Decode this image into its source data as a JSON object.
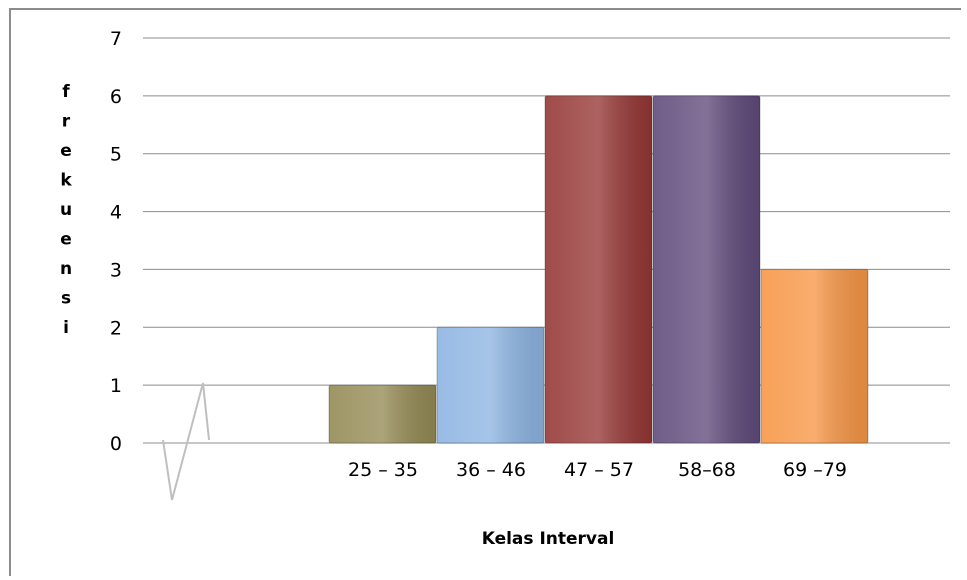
{
  "chart_data": {
    "type": "bar",
    "categories": [
      "25 – 35",
      "36 – 46",
      "47 – 57",
      "58–68",
      "69 –79"
    ],
    "values": [
      1,
      2,
      6,
      6,
      3
    ],
    "colors": [
      "#948a54",
      "#8db4e2",
      "#953735",
      "#604a7b",
      "#f79646"
    ],
    "xlabel": "Kelas Interval",
    "ylabel": "frekuensi",
    "ylabel_letters": [
      "f",
      "r",
      "e",
      "k",
      "u",
      "e",
      "n",
      "s",
      "i"
    ],
    "ylim": [
      0,
      7
    ],
    "yticks": [
      "0",
      "1",
      "2",
      "3",
      "4",
      "5",
      "6",
      "7"
    ],
    "grid": true,
    "axis_break": true
  }
}
